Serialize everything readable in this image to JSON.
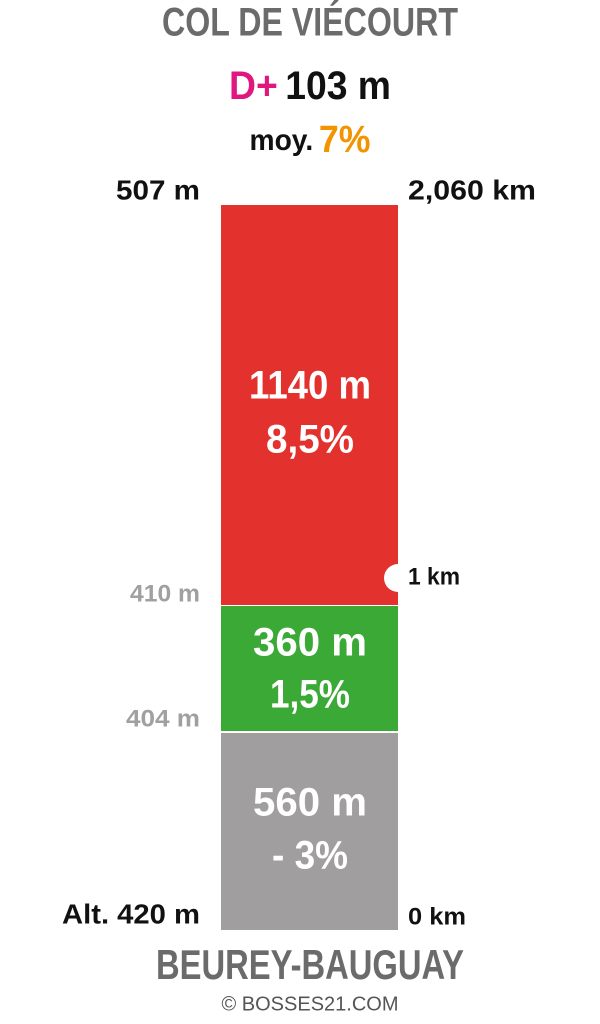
{
  "header": {
    "title": "COL DE VIÉCOURT",
    "gain_label": "D+",
    "gain": "103 m",
    "avg_label": "moy.",
    "avg": "7%"
  },
  "top": {
    "altitude": "507 m",
    "distance": "2,060 km"
  },
  "segments": [
    {
      "length": "1140 m",
      "gradient": "8,5%"
    },
    {
      "length": "360 m",
      "gradient": "1,5%"
    },
    {
      "length": "560 m",
      "gradient": "- 3%"
    }
  ],
  "markers": {
    "km1": "1 km",
    "alt1": "410 m",
    "alt2": "404 m",
    "start_altitude": "Alt. 420 m",
    "start_distance": "0 km"
  },
  "footer": {
    "place": "BEUREY-BAUGUAY",
    "credit": "© BOSSES21.COM"
  }
}
